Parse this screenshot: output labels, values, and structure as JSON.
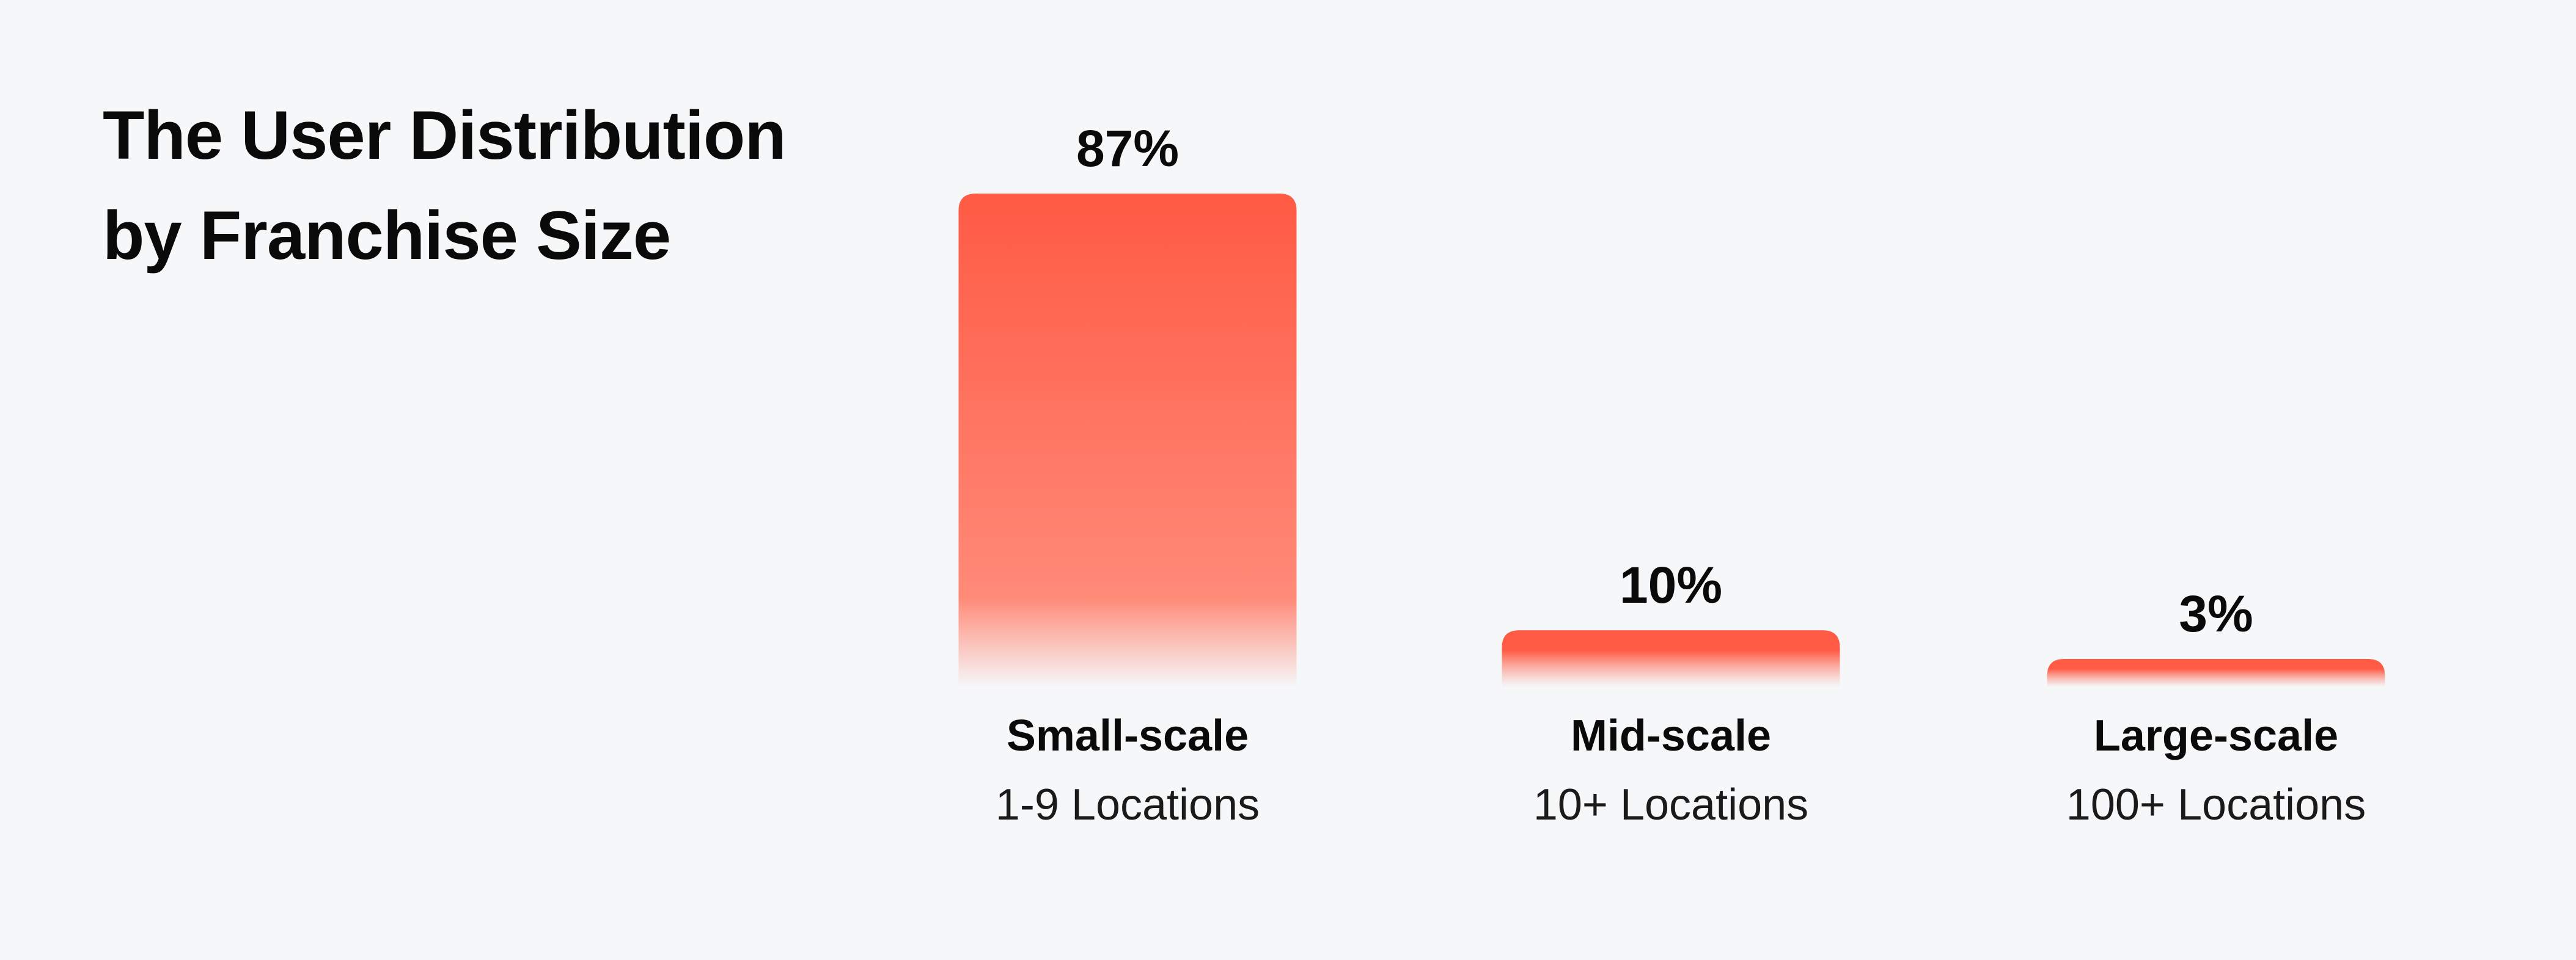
{
  "chart_data": {
    "type": "bar",
    "title_lines": [
      "The User Distribution",
      "by Franchise Size"
    ],
    "categories": [
      "Small-scale",
      "Mid-scale",
      "Large-scale"
    ],
    "subcategories": [
      "1-9 Locations",
      "10+ Locations",
      "100+ Locations"
    ],
    "values": [
      87,
      10,
      3
    ],
    "value_labels": [
      "87%",
      "10%",
      "3%"
    ],
    "ylim": [
      0,
      87
    ],
    "grid": false,
    "legend": "none",
    "colors": {
      "bar_top": "#ff5a44",
      "bar_bottom": "#ff8a78",
      "background": "#f6f7f9",
      "text": "#0a0a0a"
    }
  }
}
